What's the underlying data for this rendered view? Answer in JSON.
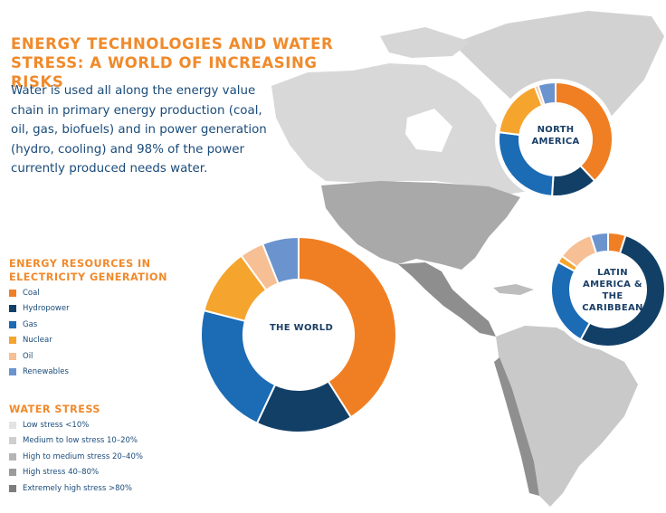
{
  "title": "ENERGY TECHNOLOGIES AND WATER STRESS: A WORLD OF INCREASING RISKS",
  "intro": "Water is used all along the energy value chain in primary energy production (coal, oil, gas, biofuels) and in power generation (hydro, cooling) and 98% of the power currently produced needs water.",
  "energy_legend": {
    "heading": "ENERGY RESOURCES IN ELECTRICITY GENERATION",
    "items": [
      {
        "label": "Coal",
        "color": "#f07f23"
      },
      {
        "label": "Hydropower",
        "color": "#123f66"
      },
      {
        "label": "Gas",
        "color": "#1b6bb5"
      },
      {
        "label": "Nuclear",
        "color": "#f5a42e"
      },
      {
        "label": "Oil",
        "color": "#f6bf94"
      },
      {
        "label": "Renewables",
        "color": "#6b94cf"
      }
    ]
  },
  "stress_legend": {
    "heading": "WATER STRESS",
    "items": [
      {
        "label": "Low stress <10%",
        "color": "#e3e3e3"
      },
      {
        "label": "Medium to low stress 10–20%",
        "color": "#cfcfcf"
      },
      {
        "label": "High to medium stress 20–40%",
        "color": "#b5b5b5"
      },
      {
        "label": "High stress 40–80%",
        "color": "#9b9b9b"
      },
      {
        "label": "Extremely high stress >80%",
        "color": "#7d7d7d"
      }
    ]
  },
  "chart_data": [
    {
      "type": "pie",
      "title": "THE WORLD",
      "categories": [
        "Coal",
        "Hydropower",
        "Gas",
        "Nuclear",
        "Oil",
        "Renewables"
      ],
      "values": [
        41,
        16,
        22,
        11,
        4,
        6
      ]
    },
    {
      "type": "pie",
      "title": "NORTH AMERICA",
      "categories": [
        "Coal",
        "Hydropower",
        "Gas",
        "Nuclear",
        "Oil",
        "Renewables"
      ],
      "values": [
        38,
        13,
        26,
        17,
        1,
        5
      ]
    },
    {
      "type": "pie",
      "title": "LATIN AMERICA & THE CARIBBEAN",
      "categories": [
        "Coal",
        "Hydropower",
        "Gas",
        "Nuclear",
        "Oil",
        "Renewables"
      ],
      "values": [
        5,
        53,
        25,
        2,
        10,
        5
      ]
    }
  ]
}
